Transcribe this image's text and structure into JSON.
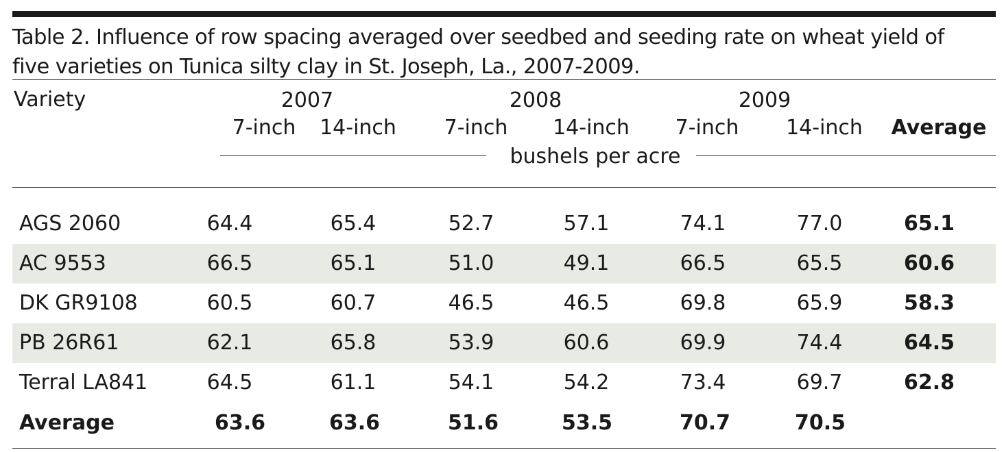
{
  "caption_line1": "Table 2. Influence of row spacing averaged over seedbed and seeding rate on wheat yield of",
  "caption_line2": "five varieties on Tunica silty clay in St. Joseph, La., 2007-2009.",
  "header": {
    "variety": "Variety",
    "years": [
      "2007",
      "2008",
      "2009"
    ],
    "spacings": [
      "7-inch",
      "14-inch",
      "7-inch",
      "14-inch",
      "7-inch",
      "14-inch"
    ],
    "average": "Average",
    "units": "bushels per acre"
  },
  "rows": [
    {
      "variety": "AGS 2060",
      "values": [
        "64.4",
        "65.4",
        "52.7",
        "57.1",
        "74.1",
        "77.0"
      ],
      "average": "65.1"
    },
    {
      "variety": "AC 9553",
      "values": [
        "66.5",
        "65.1",
        "51.0",
        "49.1",
        "66.5",
        "65.5"
      ],
      "average": "60.6"
    },
    {
      "variety": "DK GR9108",
      "values": [
        "60.5",
        "60.7",
        "46.5",
        "46.5",
        "69.8",
        "65.9"
      ],
      "average": "58.3"
    },
    {
      "variety": "PB 26R61",
      "values": [
        "62.1",
        "65.8",
        "53.9",
        "60.6",
        "69.9",
        "74.4"
      ],
      "average": "64.5"
    },
    {
      "variety": "Terral LA841",
      "values": [
        "64.5",
        "61.1",
        "54.1",
        "54.2",
        "73.4",
        "69.7"
      ],
      "average": "62.8"
    }
  ],
  "average_row": {
    "label": "Average",
    "values": [
      "63.6",
      "63.6",
      "51.6",
      "53.5",
      "70.7",
      "70.5"
    ]
  },
  "colors": {
    "rule": "#1a1a1a",
    "row_shade": "#e7ebe4",
    "text": "#1a1a1a"
  }
}
